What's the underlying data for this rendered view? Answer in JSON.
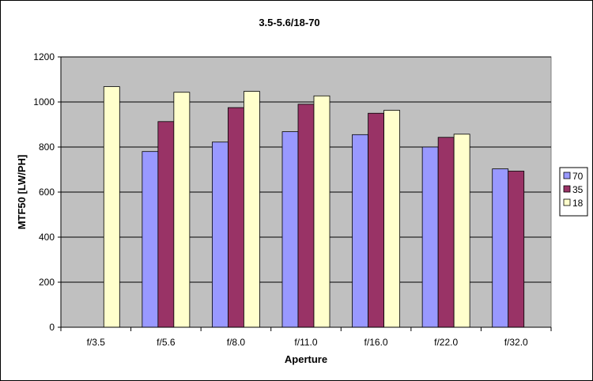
{
  "chart_data": {
    "type": "bar",
    "title": "3.5-5.6/18-70",
    "xlabel": "Aperture",
    "ylabel": "MTF50 [LW/PH]",
    "ylim": [
      0,
      1200
    ],
    "yticks": [
      0,
      200,
      400,
      600,
      800,
      1000,
      1200
    ],
    "categories": [
      "f/3.5",
      "f/5.6",
      "f/8.0",
      "f/11.0",
      "f/16.0",
      "f/22.0",
      "f/32.0"
    ],
    "series": [
      {
        "name": "70",
        "color": "#9999ff",
        "values": [
          null,
          780,
          822,
          868,
          855,
          800,
          703
        ]
      },
      {
        "name": "35",
        "color": "#993366",
        "values": [
          null,
          913,
          975,
          990,
          950,
          843,
          693
        ]
      },
      {
        "name": "18",
        "color": "#ffffcc",
        "values": [
          1068,
          1043,
          1047,
          1027,
          963,
          857,
          null
        ]
      }
    ],
    "grid": true,
    "plot_background": "#c0c0c0",
    "legend_position": "right"
  }
}
